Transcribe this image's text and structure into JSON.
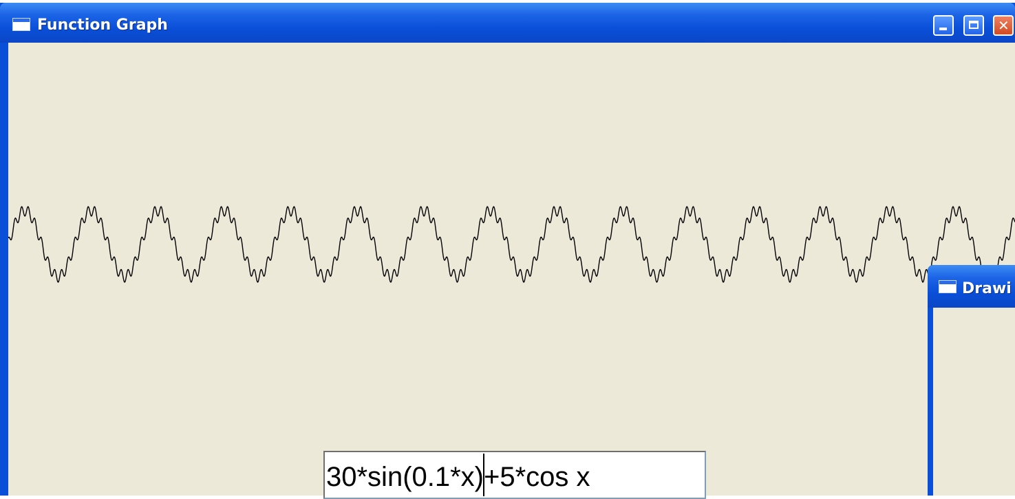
{
  "window": {
    "title": "Function Graph",
    "icon": "window-app-icon",
    "controls": {
      "minimize": "minimize-icon",
      "maximize": "maximize-icon",
      "close": "close-icon"
    }
  },
  "graph": {
    "expression": "30*sin(0.1*x)+5*cos x",
    "stroke_color": "#000000",
    "background_color": "#ece9d8"
  },
  "input": {
    "value": "30*sin(0.1*x)+5*cos x"
  },
  "second_window": {
    "title": "Drawi"
  },
  "colors": {
    "titlebar": "#0a4fd8",
    "client": "#ece9d8",
    "close_button": "#d24a22"
  }
}
